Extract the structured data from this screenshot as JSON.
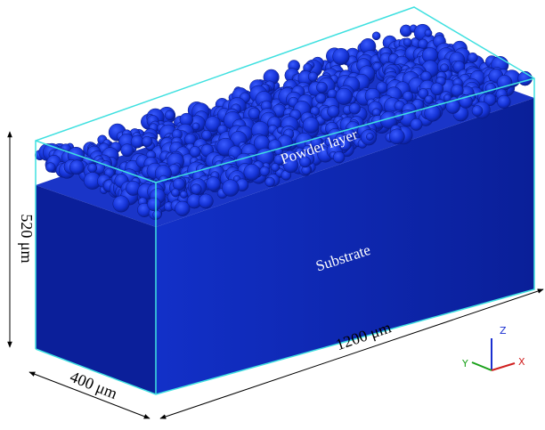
{
  "labels": {
    "powder": "Powder layer",
    "substrate": "Substrate",
    "height": "520 μm",
    "length": "1200 μm",
    "width": "400 μm"
  },
  "axes": {
    "z": "Z",
    "y": "Y",
    "x": "X"
  }
}
